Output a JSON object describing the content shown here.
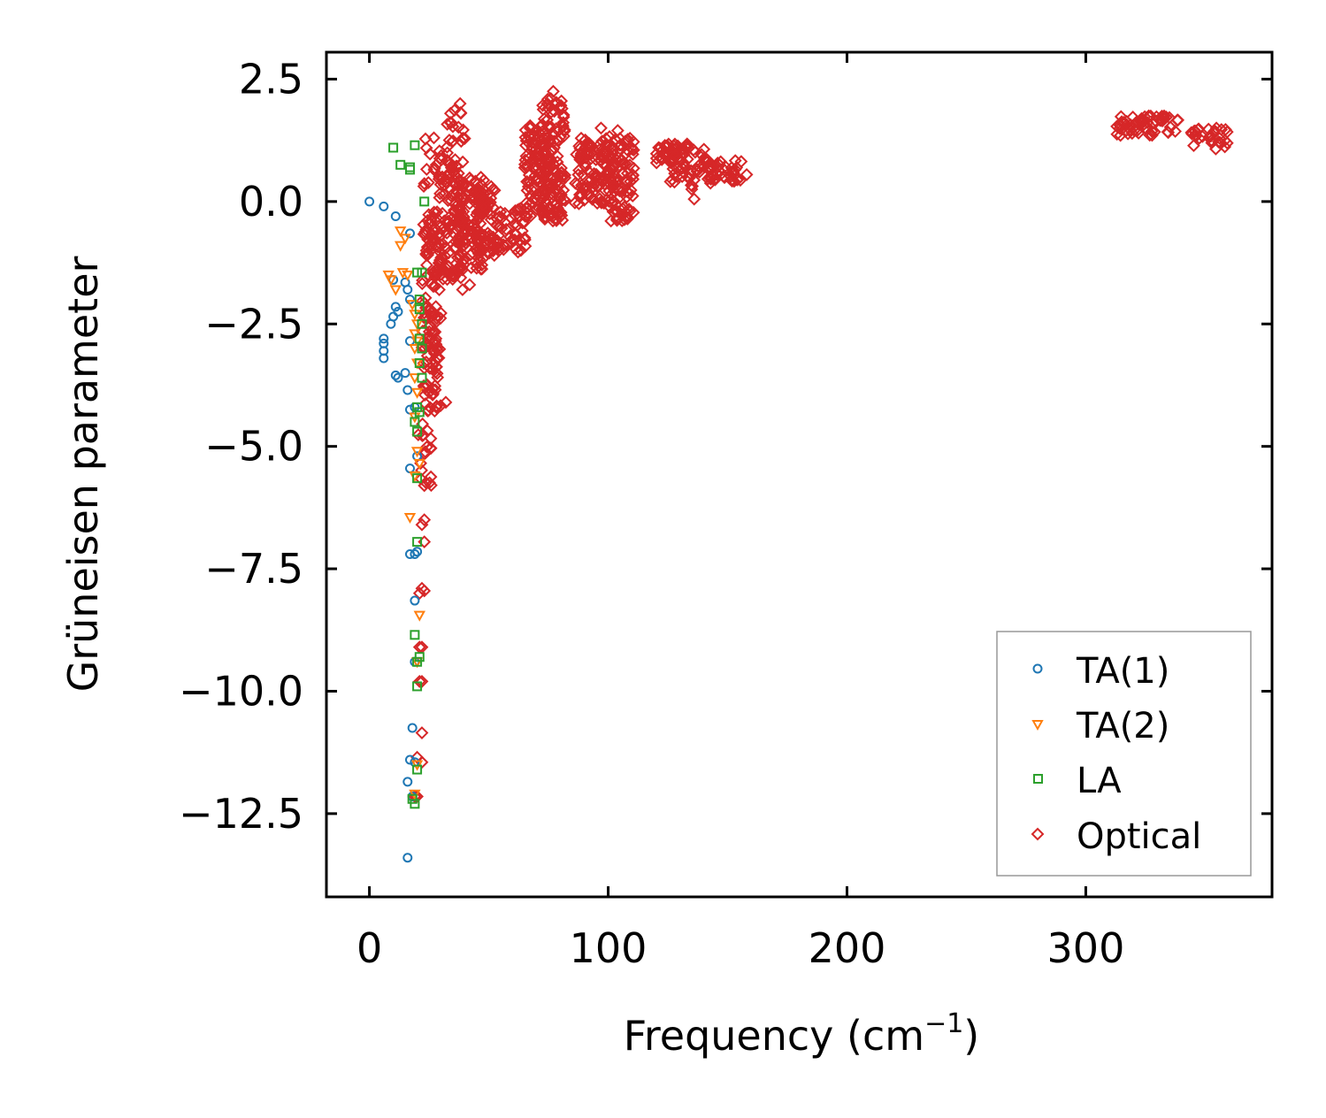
{
  "chart_data": {
    "type": "scatter",
    "title": "",
    "xlabel": "Frequency (cm",
    "xlabel_sup": "−1",
    "xlabel_close": ")",
    "ylabel": "Grüneisen parameter",
    "xlim": [
      -18,
      378
    ],
    "ylim": [
      -14.2,
      3.05
    ],
    "xticks": [
      0,
      100,
      200,
      300
    ],
    "xtick_labels": [
      "0",
      "100",
      "200",
      "300"
    ],
    "yticks": [
      2.5,
      0.0,
      -2.5,
      -5.0,
      -7.5,
      -10.0,
      -12.5
    ],
    "ytick_labels": [
      "2.5",
      "0.0",
      "−2.5",
      "−5.0",
      "−7.5",
      "−10.0",
      "−12.5"
    ],
    "legend_position": "lower-right",
    "series": [
      {
        "name": "TA(1)",
        "marker": "circle",
        "color": "#1f77b4",
        "points": [
          [
            0,
            0
          ],
          [
            6,
            -0.1
          ],
          [
            11,
            -0.3
          ],
          [
            17,
            -0.65
          ],
          [
            10,
            -1.6
          ],
          [
            15,
            -1.65
          ],
          [
            16,
            -1.8
          ],
          [
            17,
            -2.0
          ],
          [
            11,
            -2.15
          ],
          [
            12,
            -2.25
          ],
          [
            10,
            -2.35
          ],
          [
            9,
            -2.5
          ],
          [
            6,
            -2.8
          ],
          [
            6,
            -2.9
          ],
          [
            6,
            -3.05
          ],
          [
            6,
            -3.2
          ],
          [
            17,
            -2.85
          ],
          [
            11,
            -3.55
          ],
          [
            12,
            -3.6
          ],
          [
            15,
            -3.5
          ],
          [
            16,
            -3.85
          ],
          [
            17,
            -4.25
          ],
          [
            19,
            -4.2
          ],
          [
            20,
            -5.2
          ],
          [
            17,
            -5.45
          ],
          [
            17,
            -7.2
          ],
          [
            19,
            -7.2
          ],
          [
            20,
            -7.15
          ],
          [
            19,
            -8.15
          ],
          [
            19,
            -9.4
          ],
          [
            18,
            -10.75
          ],
          [
            17,
            -11.4
          ],
          [
            19,
            -11.45
          ],
          [
            16,
            -11.85
          ],
          [
            18,
            -12.15
          ],
          [
            16,
            -13.4
          ]
        ]
      },
      {
        "name": "TA(2)",
        "marker": "triangle-down",
        "color": "#ff7f0e",
        "points": [
          [
            13,
            -0.6
          ],
          [
            15,
            -0.75
          ],
          [
            13,
            -0.9
          ],
          [
            8,
            -1.5
          ],
          [
            9,
            -1.6
          ],
          [
            14,
            -1.45
          ],
          [
            16,
            -1.5
          ],
          [
            11,
            -1.8
          ],
          [
            18,
            -2.1
          ],
          [
            19,
            -2.3
          ],
          [
            20,
            -2.5
          ],
          [
            19,
            -2.7
          ],
          [
            20,
            -2.85
          ],
          [
            19,
            -3.0
          ],
          [
            20,
            -3.3
          ],
          [
            19,
            -3.6
          ],
          [
            20,
            -3.9
          ],
          [
            19,
            -4.4
          ],
          [
            20,
            -5.1
          ],
          [
            21,
            -5.35
          ],
          [
            19,
            -5.6
          ],
          [
            17,
            -6.45
          ],
          [
            21,
            -8.45
          ],
          [
            20,
            -9.4
          ],
          [
            20,
            -11.5
          ],
          [
            19,
            -12.1
          ]
        ]
      },
      {
        "name": "LA",
        "marker": "square",
        "color": "#2ca02c",
        "points": [
          [
            10,
            1.1
          ],
          [
            19,
            1.15
          ],
          [
            13,
            0.75
          ],
          [
            17,
            0.7
          ],
          [
            17,
            0.65
          ],
          [
            23,
            0
          ],
          [
            20,
            -1.45
          ],
          [
            22,
            -1.45
          ],
          [
            21,
            -2.0
          ],
          [
            21,
            -2.2
          ],
          [
            22,
            -2.5
          ],
          [
            21,
            -2.8
          ],
          [
            22,
            -3.0
          ],
          [
            21,
            -3.3
          ],
          [
            22,
            -3.6
          ],
          [
            20,
            -4.2
          ],
          [
            21,
            -4.3
          ],
          [
            19,
            -4.5
          ],
          [
            20,
            -4.7
          ],
          [
            20,
            -5.65
          ],
          [
            20,
            -6.95
          ],
          [
            19,
            -8.85
          ],
          [
            21,
            -9.3
          ],
          [
            20,
            -9.4
          ],
          [
            20,
            -9.9
          ],
          [
            20,
            -11.6
          ],
          [
            18,
            -12.2
          ],
          [
            19,
            -12.3
          ]
        ]
      }
    ],
    "optical_series": {
      "name": "Optical",
      "marker": "diamond",
      "color": "#d62728",
      "clusters": [
        {
          "x": [
            22,
            30
          ],
          "y": [
            -4.3,
            -0.2
          ],
          "n": 140
        },
        {
          "x": [
            29,
            40
          ],
          "y": [
            -1.6,
            0.9
          ],
          "n": 120
        },
        {
          "x": [
            36,
            48
          ],
          "y": [
            -1.4,
            0.5
          ],
          "n": 90
        },
        {
          "x": [
            45,
            55
          ],
          "y": [
            -1.1,
            0.4
          ],
          "n": 70
        },
        {
          "x": [
            54,
            66
          ],
          "y": [
            -1.05,
            -0.1
          ],
          "n": 40
        },
        {
          "x": [
            65,
            76
          ],
          "y": [
            -0.3,
            1.6
          ],
          "n": 110
        },
        {
          "x": [
            72,
            82
          ],
          "y": [
            -0.4,
            2.1
          ],
          "n": 120
        },
        {
          "x": [
            86,
            102
          ],
          "y": [
            -0.05,
            1.3
          ],
          "n": 110
        },
        {
          "x": [
            100,
            111
          ],
          "y": [
            -0.4,
            1.35
          ],
          "n": 90
        },
        {
          "x": [
            120,
            134
          ],
          "y": [
            0.75,
            1.2
          ],
          "n": 45
        },
        {
          "x": [
            126,
            143
          ],
          "y": [
            0.3,
            1.1
          ],
          "n": 50
        },
        {
          "x": [
            140,
            156
          ],
          "y": [
            0.4,
            0.9
          ],
          "n": 40
        },
        {
          "x": [
            313,
            339
          ],
          "y": [
            1.35,
            1.75
          ],
          "n": 60
        },
        {
          "x": [
            344,
            360
          ],
          "y": [
            1.05,
            1.5
          ],
          "n": 30
        },
        {
          "x": [
            32,
            40
          ],
          "y": [
            1.2,
            2.0
          ],
          "n": 14
        },
        {
          "x": [
            22,
            34
          ],
          "y": [
            0.3,
            1.3
          ],
          "n": 20
        },
        {
          "x": [
            20,
            26
          ],
          "y": [
            -5.8,
            -4.5
          ],
          "n": 18
        }
      ],
      "outliers": [
        [
          23,
          -5.8
        ],
        [
          23,
          -6.5
        ],
        [
          22,
          -6.6
        ],
        [
          23,
          -6.95
        ],
        [
          22,
          -7.9
        ],
        [
          23,
          -7.95
        ],
        [
          21,
          -8.0
        ],
        [
          21,
          -9.1
        ],
        [
          22,
          -9.1
        ],
        [
          21,
          -9.8
        ],
        [
          22,
          -9.8
        ],
        [
          22,
          -10.85
        ],
        [
          20,
          -11.35
        ],
        [
          22,
          -11.45
        ],
        [
          19,
          -12.15
        ],
        [
          20,
          -12.15
        ],
        [
          23,
          -3.4
        ],
        [
          25,
          -3.9
        ],
        [
          28,
          -4.2
        ],
        [
          32,
          -4.1
        ],
        [
          39,
          -1.8
        ],
        [
          42,
          -1.7
        ],
        [
          64,
          -0.6
        ],
        [
          158,
          0.55
        ],
        [
          136,
          0.05
        ],
        [
          135,
          0.25
        ],
        [
          77,
          2.25
        ],
        [
          76,
          2.1
        ],
        [
          97,
          1.5
        ],
        [
          104,
          1.45
        ],
        [
          38,
          2.0
        ],
        [
          34,
          1.8
        ],
        [
          27,
          1.3
        ],
        [
          28,
          0.75
        ]
      ]
    }
  }
}
